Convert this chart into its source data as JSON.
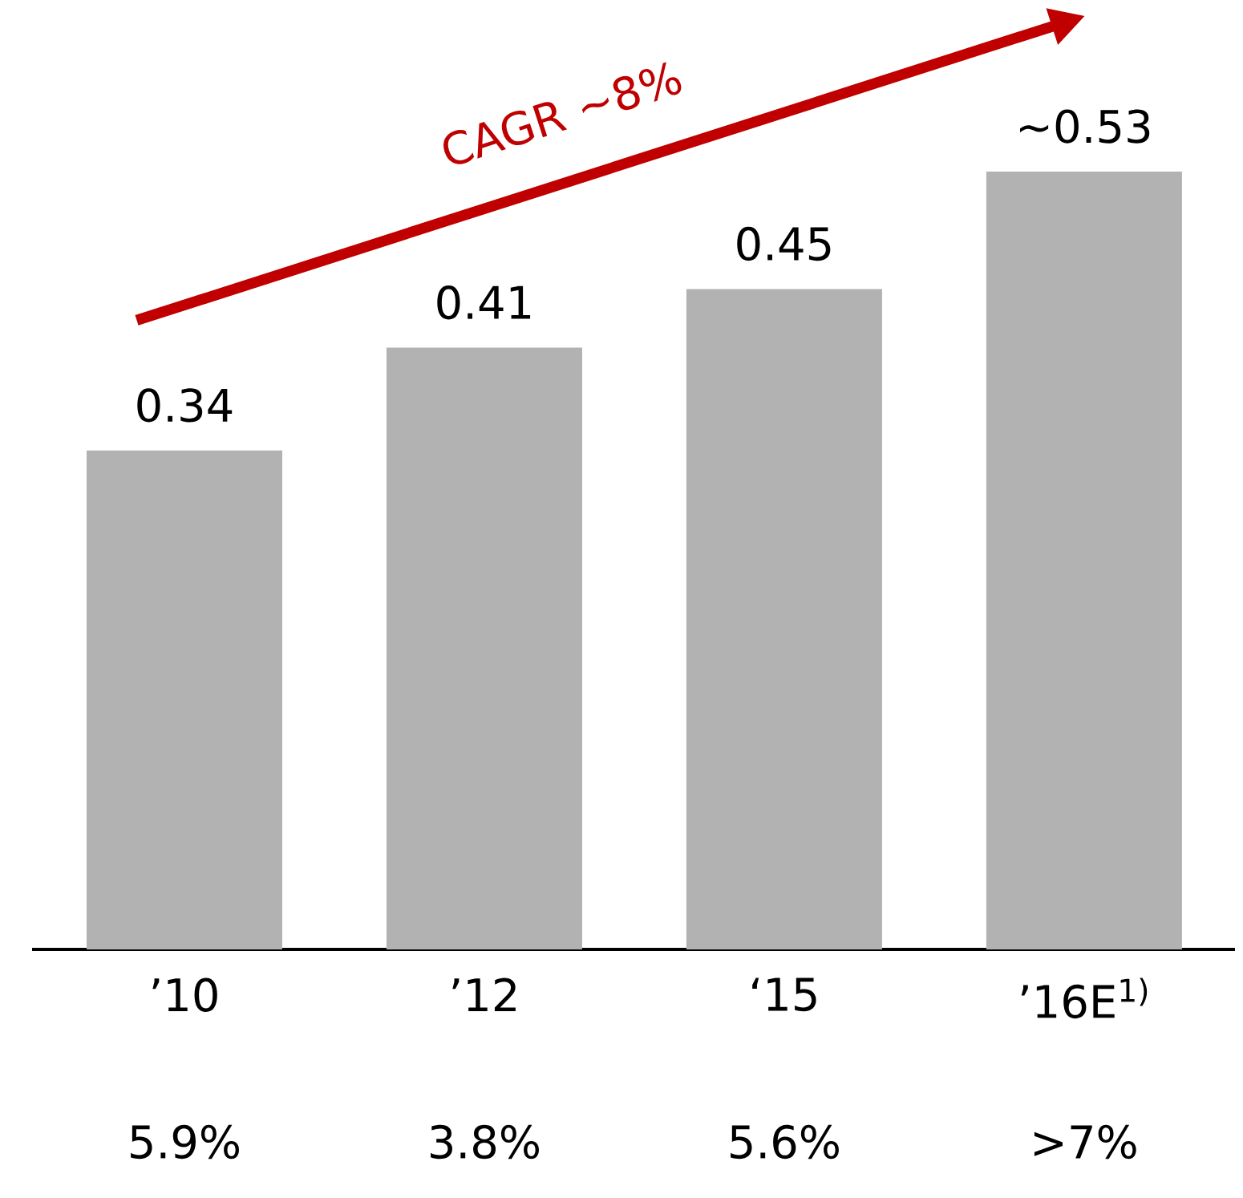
{
  "chart_data": {
    "type": "bar",
    "categories": [
      "’10",
      "’12",
      "‘15",
      "’16E$^{1)}$"
    ],
    "values": [
      0.34,
      0.41,
      0.45,
      0.53
    ],
    "value_labels": [
      "0.34",
      "0.41",
      "0.45",
      "~0.53"
    ],
    "color": "#b2b2b2",
    "annotations": [
      "5.9%",
      "3.8%",
      "5.6%",
      ">7%",
      "CAGR ~8%"
    ]
  }
}
